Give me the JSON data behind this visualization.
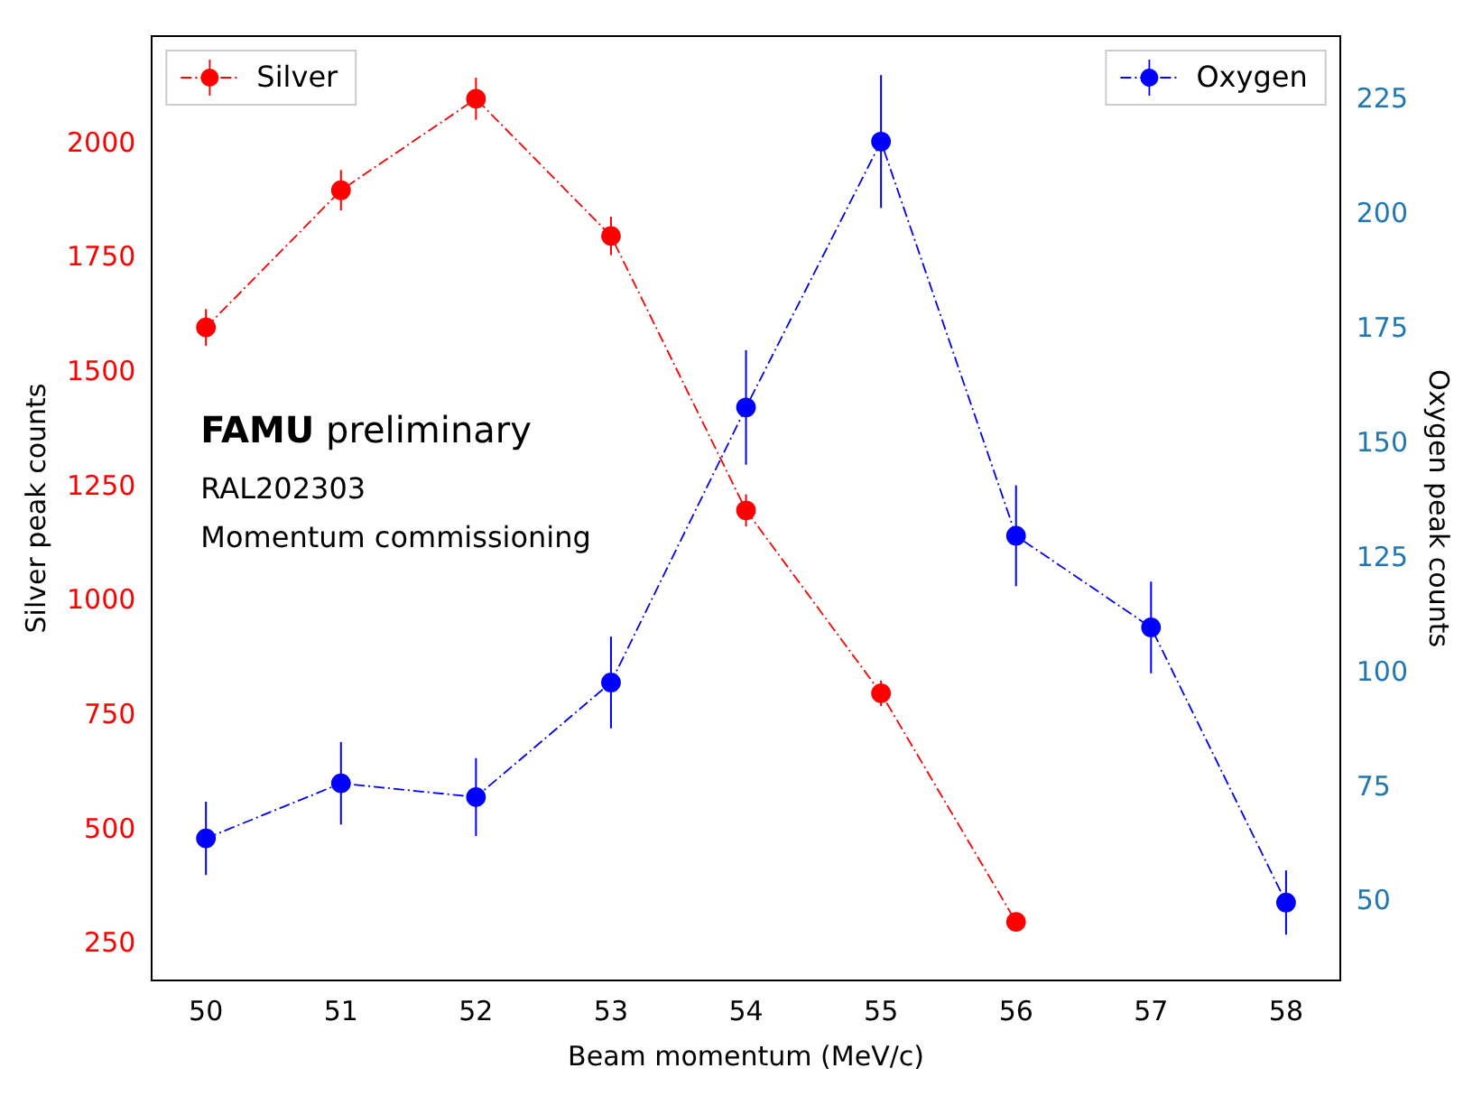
{
  "chart_data": {
    "type": "line",
    "xlabel": "Beam momentum (MeV/c)",
    "ylabel": "Silver peak counts",
    "y2label": "Oxygen peak counts",
    "x": [
      50,
      51,
      52,
      53,
      54,
      55,
      56,
      57,
      58
    ],
    "series": [
      {
        "name": "Silver",
        "color": "#ff0000",
        "x": [
          50,
          51,
          52,
          53,
          54,
          55,
          56
        ],
        "values": [
          1600,
          1900,
          2100,
          1800,
          1200,
          800,
          300
        ],
        "errors": [
          40,
          44,
          46,
          42,
          35,
          28,
          17
        ]
      },
      {
        "name": "Oxygen",
        "color": "#0000ff",
        "axis": "y2",
        "values": [
          64,
          76,
          73,
          98,
          158,
          216,
          130,
          110,
          50
        ],
        "errors": [
          8,
          9,
          8.5,
          10,
          12.5,
          14.5,
          11,
          10,
          7
        ]
      }
    ],
    "xlim": [
      49.6,
      58.4
    ],
    "xticks": [
      50,
      51,
      52,
      53,
      54,
      55,
      56,
      57,
      58
    ],
    "ylim": [
      172,
      2237
    ],
    "yticks": [
      250,
      500,
      750,
      1000,
      1250,
      1500,
      1750,
      2000
    ],
    "y2lim": [
      33,
      239
    ],
    "y2ticks": [
      50,
      75,
      100,
      125,
      150,
      175,
      200,
      225
    ],
    "annotations": [
      "FAMU preliminary",
      "RAL202303",
      "Momentum commissioning"
    ],
    "legend": "top",
    "marker": "circle",
    "line_style": "dashed",
    "grid": false
  }
}
